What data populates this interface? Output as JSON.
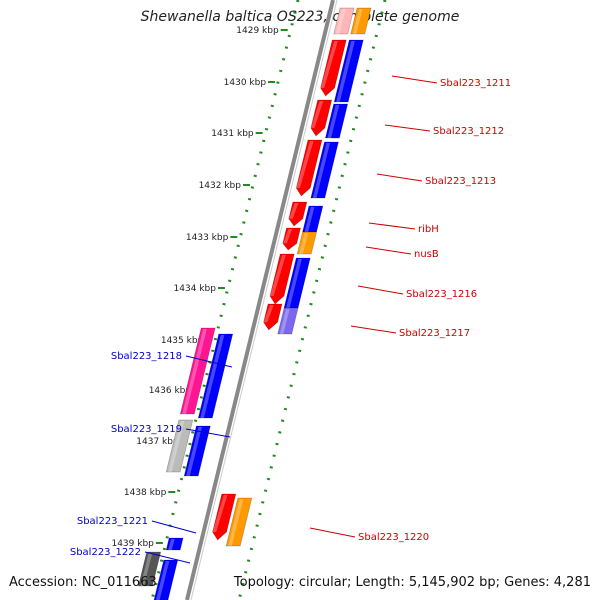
{
  "header": {
    "title": "Shewanella baltica OS223, complete genome"
  },
  "footer": {
    "accession": "Accession: NC_011663",
    "topology": "Topology: circular; Length: 5,145,902 bp; Genes: 4,281"
  },
  "ruler": {
    "ticks": [
      "1429 kbp",
      "1430 kbp",
      "1431 kbp",
      "1432 kbp",
      "1433 kbp",
      "1434 kbp",
      "1435 kbp",
      "1436 kbp",
      "1437 kbp",
      "1438 kbp",
      "1439 kbp"
    ]
  },
  "colors": {
    "strand_plus_label": "#cc0000",
    "strand_minus_label": "#0000cc",
    "red": "#ff0000",
    "blue": "#0000ff",
    "orange": "#ff9900",
    "magenta": "#ff1493",
    "lavender": "#7b68ee",
    "grey": "#bbbbbb",
    "darkgrey": "#555555",
    "dots": "#228b22"
  },
  "genes": [
    {
      "label": "Sbal223_1211",
      "strand": "plus"
    },
    {
      "label": "Sbal223_1212",
      "strand": "plus"
    },
    {
      "label": "Sbal223_1213",
      "strand": "plus"
    },
    {
      "label": "ribH",
      "strand": "plus"
    },
    {
      "label": "nusB",
      "strand": "plus"
    },
    {
      "label": "Sbal223_1216",
      "strand": "plus"
    },
    {
      "label": "Sbal223_1217",
      "strand": "plus"
    },
    {
      "label": "Sbal223_1218",
      "strand": "minus"
    },
    {
      "label": "Sbal223_1219",
      "strand": "minus"
    },
    {
      "label": "Sbal223_1220",
      "strand": "plus"
    },
    {
      "label": "Sbal223_1221",
      "strand": "minus"
    },
    {
      "label": "Sbal223_1222",
      "strand": "minus"
    }
  ]
}
